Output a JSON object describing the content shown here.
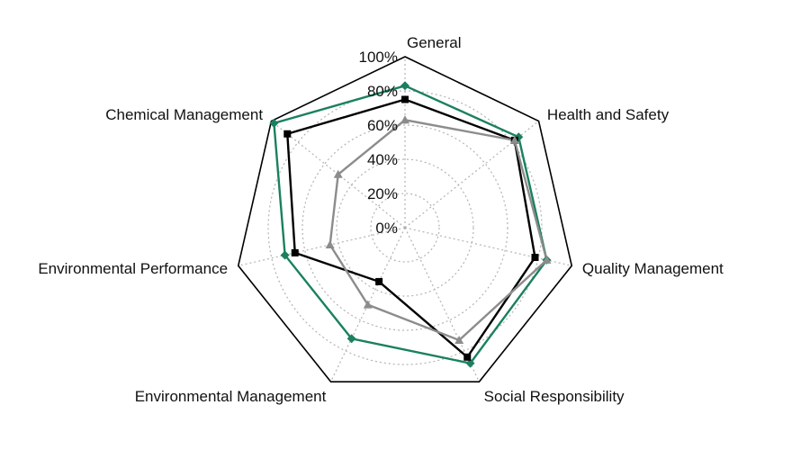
{
  "chart_data": {
    "type": "radar",
    "axes": [
      "General",
      "Health and Safety",
      "Quality Management",
      "Social Responsibility",
      "Environmental Management",
      "Environmental Performance",
      "Chemical Management"
    ],
    "tick_labels": [
      "0%",
      "20%",
      "40%",
      "60%",
      "80%",
      "100%"
    ],
    "ticks": [
      0,
      20,
      40,
      60,
      80,
      100
    ],
    "range": [
      0,
      100
    ],
    "grid": true,
    "legend": "none",
    "series": [
      {
        "color": "#1a8060",
        "marker": "diamond",
        "values": [
          83,
          85,
          85,
          88,
          72,
          72,
          98
        ]
      },
      {
        "color": "#000000",
        "marker": "square",
        "values": [
          75,
          82,
          78,
          84,
          35,
          66,
          88
        ]
      },
      {
        "color": "#8c8c8c",
        "marker": "triangle",
        "values": [
          63,
          82,
          85,
          73,
          50,
          45,
          50
        ]
      }
    ],
    "outline_color": "#000000",
    "grid_color": "#b3b3b3"
  }
}
